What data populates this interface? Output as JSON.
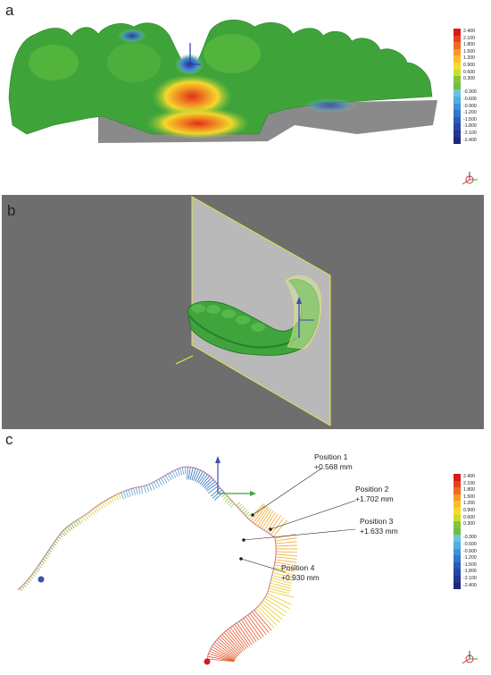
{
  "panels": {
    "a": {
      "letter": "a"
    },
    "b": {
      "letter": "b"
    },
    "c": {
      "letter": "c",
      "positions": [
        {
          "name": "Position 1",
          "value": "+0.568 mm"
        },
        {
          "name": "Position 2",
          "value": "+1.702 mm"
        },
        {
          "name": "Position 3",
          "value": "+1.633 mm"
        },
        {
          "name": "Position 4",
          "value": "+0.930 mm"
        }
      ]
    }
  },
  "colorbar": {
    "positive": [
      "2.400",
      "2.100",
      "1.800",
      "1.500",
      "1.200",
      "0.900",
      "0.600",
      "0.300"
    ],
    "negative": [
      "-0.300",
      "-0.600",
      "-0.900",
      "-1.200",
      "-1.500",
      "-1.800",
      "-2.100",
      "-2.400"
    ],
    "colors_positive": [
      "#d7191c",
      "#e8401f",
      "#f26a21",
      "#f79a25",
      "#fbbf2a",
      "#f4dd2d",
      "#c7df2c",
      "#86c43a"
    ],
    "colors_negative": [
      "#6cc4d9",
      "#4fb0de",
      "#3c94d8",
      "#3476c8",
      "#2c5cb6",
      "#2747a2",
      "#233690",
      "#1f277c"
    ]
  },
  "colors": {
    "model_green": "#3fa43c",
    "viewport_gray": "#6e6e6e",
    "plane_yellow": "#e7e34a"
  }
}
